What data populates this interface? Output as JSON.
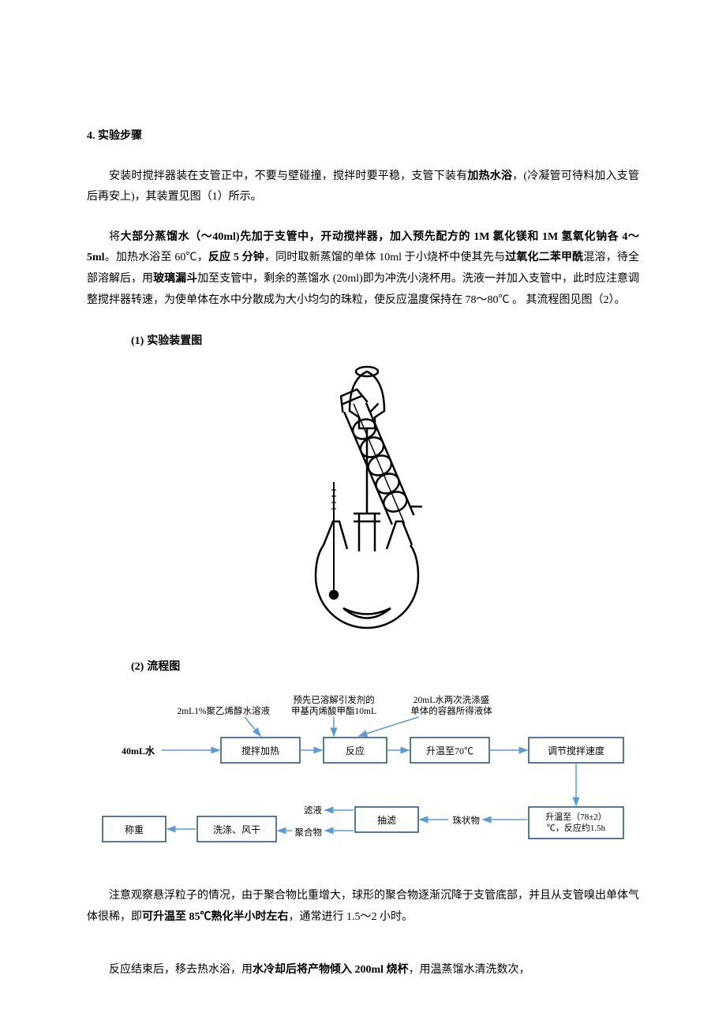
{
  "section": {
    "number": "4.",
    "title": "实验步骤"
  },
  "para1": {
    "t1": "安装时搅拌器装在支管正中，不要与壁碰撞，搅拌时要平稳，支管下装有",
    "b1": "加热水浴",
    "t2": "，(冷凝管可待料加入支管后再安上)，其装置见图（1）所示。"
  },
  "para2": {
    "t1": "将",
    "b1": "大部分蒸馏水（～40ml)先加于支管中，开动搅拌器，加入预先配方的 1M 氯化镁和 1M 氢氧化钠各 4～5ml",
    "t2": "。加热水浴至 60℃，",
    "b2": "反应 5 分钟",
    "t3": "，同时取新蒸馏的单体 10ml 于小烧杯中使其先与",
    "b3": "过氧化二苯甲酰",
    "t4": "混溶，待全部溶解后，用",
    "b4": "玻璃漏斗",
    "t5": "加至支管中，剩余的蒸馏水 (20ml)即为冲洗小浇杯用。洗液一并加入支管中，此时应注意调整搅拌器转速，为使单体在水中分散成为大小均匀的珠粒，使反应温度保持在 78～80℃ 。 其流程图见图（2）。"
  },
  "sub1": {
    "num": "(1)",
    "label": "实验装置图"
  },
  "sub2": {
    "num": "(2)",
    "label": "流程图"
  },
  "flow": {
    "in1": "2mL1%聚乙烯醇水溶液",
    "in2a": "预先已溶解引发剂的",
    "in2b": "甲基丙烯酸甲酯10mL",
    "in3a": "20mL水两次洗涤盛",
    "in3b": "单体的容器所得液体",
    "b_water": "40mL水",
    "b_stir": "搅拌加热",
    "b_react": "反应",
    "b_heat70": "升温至70℃",
    "b_adjust": "调节搅拌速度",
    "b_weigh": "称重",
    "b_wash": "洗涤、风干",
    "b_filter": "抽滤",
    "l_filtrate": "滤液",
    "l_polymer": "聚合物",
    "l_beads": "珠状物",
    "b_raise": "升温至（78±2）℃，反应约1.5h",
    "box_stroke": "#1f4e79",
    "line_stroke": "#5b9bd5"
  },
  "para3": {
    "t1": "注意观察悬浮粒子的情况，由于聚合物比重增大，球形的聚合物逐渐沉降于支管底部，并且从支管嗅出单体气体很稀，即",
    "b1": "可升温至 85℃熟化半小时左右",
    "t2": "，通常进行 1.5～2 小时。"
  },
  "para4": {
    "t1": "反应结束后，移去热水浴，用",
    "b1": "水冷却后将产物倾入 200ml 烧杯",
    "t2": "，用温蒸馏水清洗数次，"
  }
}
